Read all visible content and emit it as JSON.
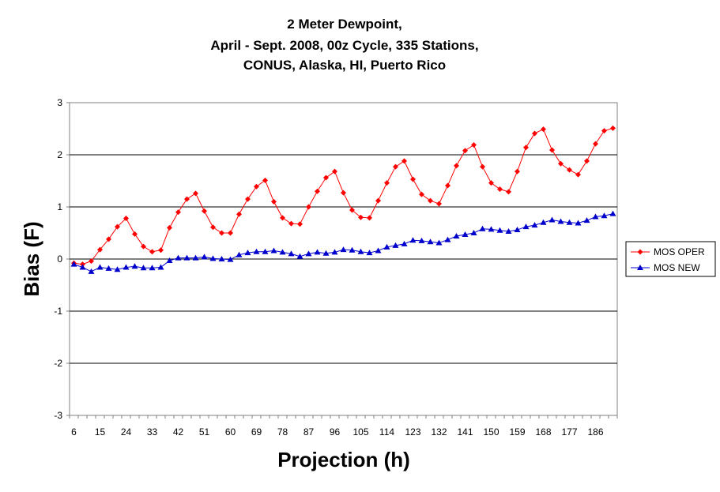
{
  "chart_data": {
    "type": "line",
    "title_lines": [
      "2 Meter Dewpoint,",
      "April - Sept. 2008, 00z Cycle, 335 Stations,",
      "CONUS, Alaska, HI, Puerto Rico"
    ],
    "xlabel": "Projection (h)",
    "ylabel": "Bias (F)",
    "ylim": [
      -3,
      3
    ],
    "yticks": [
      "3",
      "2",
      "1",
      "0",
      "-1",
      "-2",
      "-3"
    ],
    "x": [
      6,
      9,
      12,
      15,
      18,
      21,
      24,
      27,
      30,
      33,
      36,
      39,
      42,
      45,
      48,
      51,
      54,
      57,
      60,
      63,
      66,
      69,
      72,
      75,
      78,
      81,
      84,
      87,
      90,
      93,
      96,
      99,
      102,
      105,
      108,
      111,
      114,
      117,
      120,
      123,
      126,
      129,
      132,
      135,
      138,
      141,
      144,
      147,
      150,
      153,
      156,
      159,
      162,
      165,
      168,
      171,
      174,
      177,
      180,
      183,
      186,
      189,
      192
    ],
    "xticks": [
      "6",
      "15",
      "24",
      "33",
      "42",
      "51",
      "60",
      "69",
      "78",
      "87",
      "96",
      "105",
      "114",
      "123",
      "132",
      "141",
      "150",
      "159",
      "168",
      "177",
      "186"
    ],
    "grid": true,
    "legend_position": "right",
    "series": [
      {
        "name": "MOS OPER",
        "color": "#ff0000",
        "marker": "diamond",
        "values": [
          -0.08,
          -0.1,
          -0.04,
          0.18,
          0.38,
          0.62,
          0.78,
          0.48,
          0.24,
          0.14,
          0.17,
          0.6,
          0.9,
          1.15,
          1.26,
          0.92,
          0.61,
          0.5,
          0.5,
          0.86,
          1.15,
          1.39,
          1.51,
          1.1,
          0.79,
          0.68,
          0.67,
          1.0,
          1.3,
          1.56,
          1.68,
          1.27,
          0.94,
          0.8,
          0.79,
          1.12,
          1.46,
          1.77,
          1.88,
          1.53,
          1.24,
          1.12,
          1.06,
          1.41,
          1.79,
          2.08,
          2.19,
          1.77,
          1.46,
          1.34,
          1.29,
          1.68,
          2.14,
          2.41,
          2.49,
          2.09,
          1.83,
          1.71,
          1.62,
          1.88,
          2.21,
          2.46,
          2.51
        ]
      },
      {
        "name": "MOS NEW",
        "color": "#0000cc",
        "marker": "triangle",
        "values": [
          -0.1,
          -0.16,
          -0.24,
          -0.16,
          -0.18,
          -0.2,
          -0.16,
          -0.14,
          -0.17,
          -0.17,
          -0.16,
          -0.03,
          0.02,
          0.02,
          0.02,
          0.04,
          0.01,
          0.0,
          -0.01,
          0.08,
          0.12,
          0.14,
          0.14,
          0.16,
          0.13,
          0.1,
          0.05,
          0.1,
          0.13,
          0.11,
          0.13,
          0.18,
          0.17,
          0.14,
          0.12,
          0.16,
          0.23,
          0.26,
          0.29,
          0.36,
          0.35,
          0.33,
          0.31,
          0.37,
          0.44,
          0.47,
          0.5,
          0.58,
          0.57,
          0.55,
          0.53,
          0.56,
          0.62,
          0.65,
          0.7,
          0.75,
          0.72,
          0.7,
          0.69,
          0.74,
          0.81,
          0.83,
          0.87
        ]
      }
    ]
  }
}
